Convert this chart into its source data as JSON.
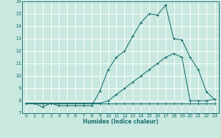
{
  "title": "",
  "xlabel": "Humidex (Indice chaleur)",
  "ylabel": "",
  "xlim": [
    -0.5,
    23.5
  ],
  "ylim": [
    7,
    16
  ],
  "xticks": [
    0,
    1,
    2,
    3,
    4,
    5,
    6,
    7,
    8,
    9,
    10,
    11,
    12,
    13,
    14,
    15,
    16,
    17,
    18,
    19,
    20,
    21,
    22,
    23
  ],
  "yticks": [
    7,
    8,
    9,
    10,
    11,
    12,
    13,
    14,
    15,
    16
  ],
  "background_color": "#c8e8e0",
  "grid_color": "#ffffff",
  "line_color": "#1a7070",
  "line1_x": [
    0,
    1,
    2,
    3,
    4,
    5,
    6,
    7,
    8,
    9,
    10,
    11,
    12,
    13,
    14,
    15,
    16,
    17,
    18,
    19,
    20,
    21,
    22,
    23
  ],
  "line1_y": [
    7.8,
    7.8,
    7.8,
    7.8,
    7.8,
    7.8,
    7.8,
    7.8,
    7.8,
    7.8,
    7.8,
    7.8,
    7.8,
    7.8,
    7.8,
    7.8,
    7.8,
    7.8,
    7.8,
    7.8,
    7.8,
    7.8,
    7.8,
    7.8
  ],
  "line2_x": [
    0,
    1,
    2,
    3,
    4,
    5,
    6,
    7,
    8,
    9,
    10,
    11,
    12,
    13,
    14,
    15,
    16,
    17,
    18,
    19,
    20,
    21,
    22,
    23
  ],
  "line2_y": [
    7.8,
    7.8,
    7.5,
    7.8,
    7.6,
    7.6,
    7.6,
    7.6,
    7.6,
    8.8,
    10.5,
    11.5,
    12.0,
    13.2,
    14.3,
    15.0,
    14.9,
    15.7,
    13.0,
    12.9,
    11.5,
    10.5,
    8.7,
    8.1
  ],
  "line3_x": [
    0,
    1,
    2,
    3,
    4,
    5,
    6,
    7,
    8,
    9,
    10,
    11,
    12,
    13,
    14,
    15,
    16,
    17,
    18,
    19,
    20,
    21,
    22,
    23
  ],
  "line3_y": [
    7.8,
    7.8,
    7.8,
    7.8,
    7.8,
    7.8,
    7.8,
    7.8,
    7.8,
    7.8,
    8.0,
    8.5,
    9.0,
    9.5,
    10.0,
    10.5,
    11.0,
    11.5,
    11.8,
    11.5,
    8.0,
    8.0,
    8.0,
    8.1
  ],
  "xlabel_fontsize": 5.5,
  "tick_fontsize": 5.0,
  "linewidth": 0.8,
  "markersize": 2.5
}
